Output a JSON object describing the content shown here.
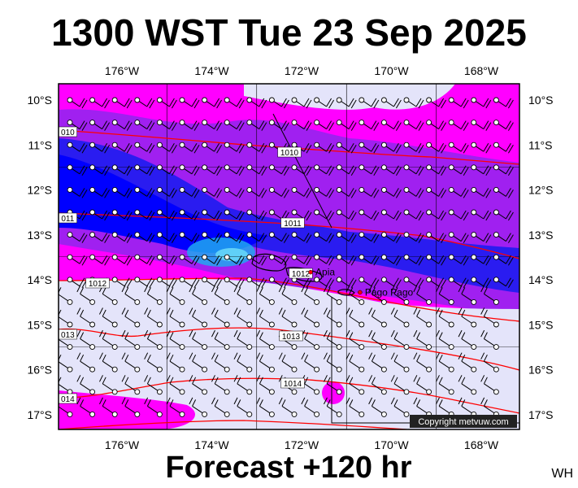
{
  "title": "1300 WST Tue 23 Sep 2025",
  "footer": "Forecast +120 hr",
  "initials": "WH",
  "copyright": "Copyright metvuw.com",
  "lon_labels": [
    "176°W",
    "174°W",
    "172°W",
    "170°W",
    "168°W"
  ],
  "lat_labels": [
    "10°S",
    "11°S",
    "12°S",
    "13°S",
    "14°S",
    "15°S",
    "16°S",
    "17°S"
  ],
  "places": [
    {
      "name": "Apia",
      "lon": -171.8,
      "lat": -13.83
    },
    {
      "name": "Pago Pago",
      "lon": -170.7,
      "lat": -14.28
    }
  ],
  "isobars": [
    {
      "label": "1010",
      "edge_label": "010"
    },
    {
      "label": "1011",
      "edge_label": "011"
    },
    {
      "label": "1012",
      "edge_label": "1012"
    },
    {
      "label": "1013",
      "edge_label": "013"
    },
    {
      "label": "1014",
      "edge_label": "014"
    }
  ],
  "colors": {
    "magenta": "#ff00ff",
    "violet": "#a020f0",
    "blue": "#2a1cf0",
    "deep_blue": "#0000ff",
    "cyan": "#20a8f0",
    "calm": "#e4e4fa",
    "isobar": "#ff0000",
    "grid": "#000000"
  }
}
